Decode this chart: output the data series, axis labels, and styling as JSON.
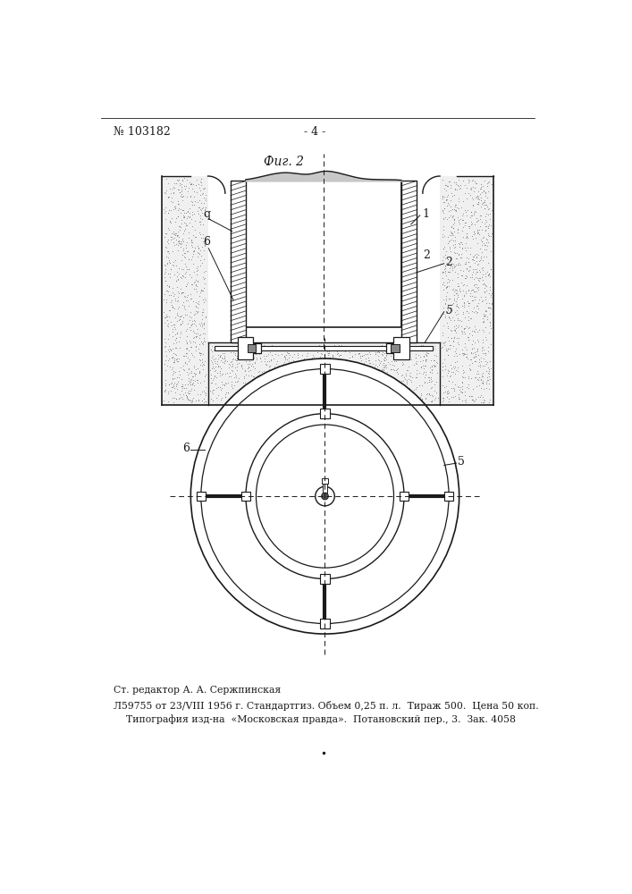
{
  "title": "Фиг. 2",
  "header_num": "№ 103182",
  "header_page": "- 4 -",
  "footer_line1": "Ст. редактор А. А. Сержпинская",
  "footer_line2": "Л59755 от 23/VIII 1956 г. Стандартгиз. Объем 0,25 п. л.  Тираж 500.  Цена 50 коп.",
  "footer_line3": "    Типография изд-на  «Московская правда».  Потановский пер., 3.  Зак. 4058",
  "lc": "#1a1a1a",
  "sand_fc": "#e8e8e8",
  "hatch_fc": "#c8c8c8",
  "label_1": "1",
  "label_2": "2",
  "label_5": "5",
  "label_6": "6",
  "label_q": "q"
}
